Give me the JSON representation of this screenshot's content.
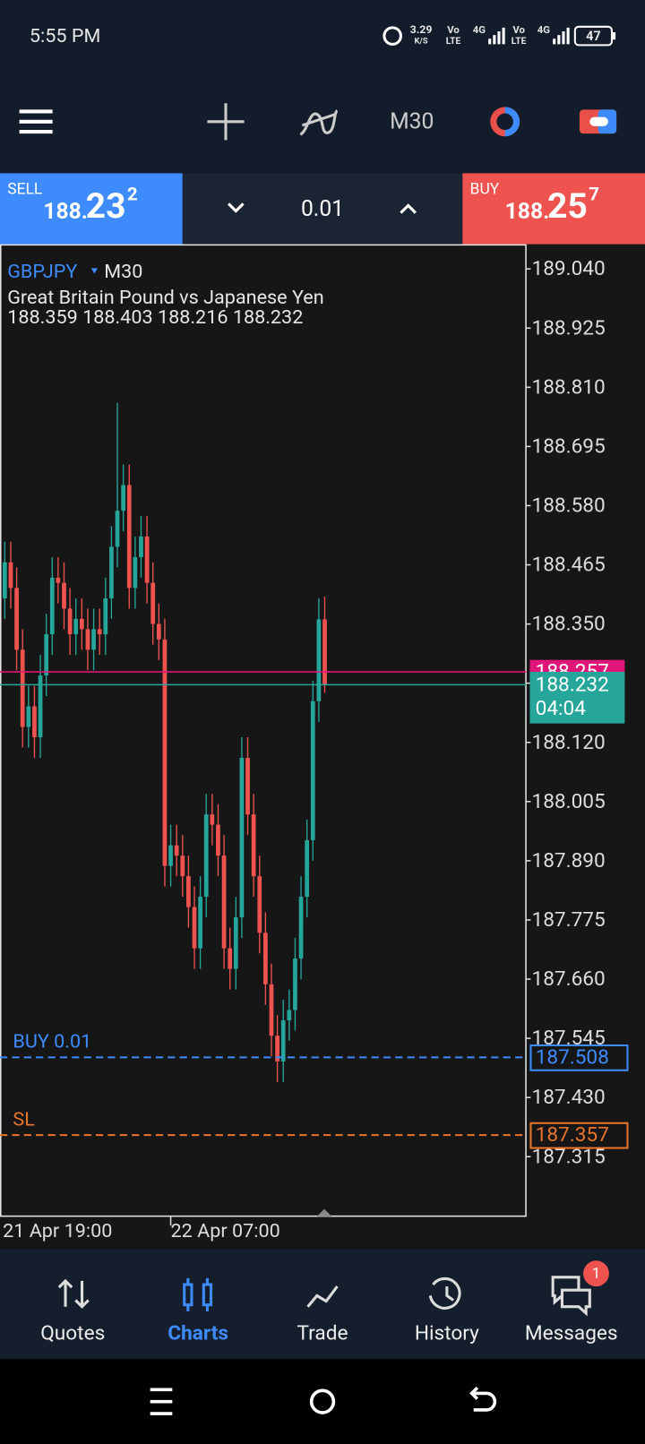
{
  "status_bar": {
    "time": "5:55 PM",
    "speed": "3.29",
    "speed_unit": "K/S",
    "volte1": "Vo",
    "lte1": "LTE",
    "net1": "4G",
    "volte2": "Vo",
    "lte2": "LTE",
    "net2": "4G",
    "battery": "47"
  },
  "toolbar": {
    "timeframe": "M30"
  },
  "trade_bar": {
    "sell": {
      "label": "SELL",
      "small": "188.",
      "big": "23",
      "sup": "2"
    },
    "lot": "0.01",
    "buy": {
      "label": "BUY",
      "small": "188.",
      "big": "25",
      "sup": "7"
    }
  },
  "chart_data": {
    "type": "candlestick",
    "symbol": "GBPJPY",
    "timeframe": "M30",
    "title": "Great Britain Pound vs Japanese Yen",
    "up_color": "#26a69a",
    "down_color": "#ef5350",
    "categories": [
      "21 Apr 19:00",
      null,
      null,
      null,
      null,
      null,
      null,
      null,
      null,
      null,
      null,
      null,
      null,
      null,
      null,
      null,
      null,
      null,
      null,
      null,
      null,
      null,
      null,
      null,
      null,
      null,
      null,
      null,
      "22 Apr 07:00",
      null,
      null,
      null,
      null,
      null,
      null,
      null,
      null,
      null,
      null,
      null,
      null,
      null,
      null,
      null,
      null,
      null,
      null,
      null,
      null,
      null,
      null,
      null,
      null,
      null,
      null
    ],
    "open": [
      188.4,
      188.47,
      188.42,
      188.3,
      188.15,
      188.19,
      188.13,
      188.25,
      188.33,
      188.44,
      188.43,
      188.38,
      188.33,
      188.36,
      188.34,
      188.3,
      188.34,
      188.33,
      188.4,
      188.5,
      188.57,
      188.62,
      188.42,
      188.48,
      188.52,
      188.43,
      188.35,
      188.32,
      187.88,
      187.92,
      187.9,
      187.86,
      187.8,
      187.72,
      187.82,
      187.98,
      187.96,
      187.9,
      187.72,
      187.68,
      187.78,
      188.09,
      187.98,
      187.86,
      187.75,
      187.65,
      187.55,
      187.5,
      187.58,
      187.6,
      187.7,
      187.82,
      187.93,
      188.2,
      188.359
    ],
    "high": [
      188.51,
      188.51,
      188.46,
      188.34,
      188.23,
      188.23,
      188.29,
      188.37,
      188.48,
      188.48,
      188.47,
      188.42,
      188.4,
      188.4,
      188.38,
      188.38,
      188.38,
      188.44,
      188.54,
      188.78,
      188.66,
      188.66,
      188.52,
      188.56,
      188.56,
      188.47,
      188.39,
      188.36,
      187.96,
      187.96,
      187.94,
      187.9,
      187.84,
      187.86,
      188.02,
      188.02,
      188.0,
      187.94,
      187.76,
      187.82,
      188.13,
      188.13,
      188.02,
      187.9,
      187.79,
      187.69,
      187.59,
      187.62,
      187.64,
      187.74,
      187.86,
      187.97,
      188.24,
      188.4,
      188.403
    ],
    "low": [
      188.36,
      188.38,
      188.26,
      188.11,
      188.11,
      188.09,
      188.09,
      188.21,
      188.29,
      188.39,
      188.34,
      188.29,
      188.29,
      188.3,
      188.26,
      188.26,
      188.29,
      188.29,
      188.36,
      188.46,
      188.53,
      188.38,
      188.38,
      188.44,
      188.39,
      188.31,
      188.28,
      187.84,
      187.84,
      187.86,
      187.82,
      187.76,
      187.68,
      187.68,
      187.78,
      187.92,
      187.86,
      187.68,
      187.64,
      187.64,
      187.74,
      187.94,
      187.82,
      187.71,
      187.61,
      187.51,
      187.46,
      187.46,
      187.54,
      187.56,
      187.66,
      187.78,
      187.89,
      188.16,
      188.216
    ],
    "close": [
      188.47,
      188.42,
      188.3,
      188.15,
      188.19,
      188.13,
      188.25,
      188.33,
      188.44,
      188.43,
      188.38,
      188.33,
      188.36,
      188.34,
      188.3,
      188.34,
      188.33,
      188.4,
      188.5,
      188.57,
      188.62,
      188.42,
      188.48,
      188.52,
      188.43,
      188.35,
      188.32,
      187.88,
      187.92,
      187.9,
      187.86,
      187.8,
      187.72,
      187.82,
      187.98,
      187.96,
      187.9,
      187.72,
      187.68,
      187.78,
      188.09,
      187.98,
      187.86,
      187.75,
      187.65,
      187.55,
      187.5,
      187.58,
      187.6,
      187.7,
      187.82,
      187.93,
      188.2,
      188.359,
      188.232
    ],
    "ylim": [
      187.199,
      189.088
    ],
    "yticks": [
      {
        "value": 189.04,
        "label": "189.040"
      },
      188.925,
      {
        "value": 188.81,
        "label": "188.810"
      },
      188.695,
      {
        "value": 188.58,
        "label": "188.580"
      },
      188.465,
      {
        "value": 188.35,
        "label": "188.350"
      },
      188.235,
      {
        "value": 188.12,
        "label": "188.120"
      },
      188.005,
      {
        "value": 187.89,
        "label": "187.890"
      },
      187.775,
      {
        "value": 187.66,
        "label": "187.660"
      },
      187.545,
      {
        "value": 187.43,
        "label": "187.430"
      },
      187.315
    ],
    "ask": {
      "value": 188.257,
      "color": "#e0157a"
    },
    "bid": {
      "value": 188.232,
      "timer": "04:04",
      "color": "#26a69a"
    },
    "orders": [
      {
        "label": "BUY 0.01",
        "value": 187.508,
        "color": "#3d8bfd"
      },
      {
        "label": "SL",
        "value": 187.357,
        "color": "#e8742c"
      }
    ]
  },
  "nav": {
    "items": [
      "Quotes",
      "Charts",
      "Trade",
      "History",
      "Messages"
    ],
    "active": 1,
    "badge": "1"
  }
}
